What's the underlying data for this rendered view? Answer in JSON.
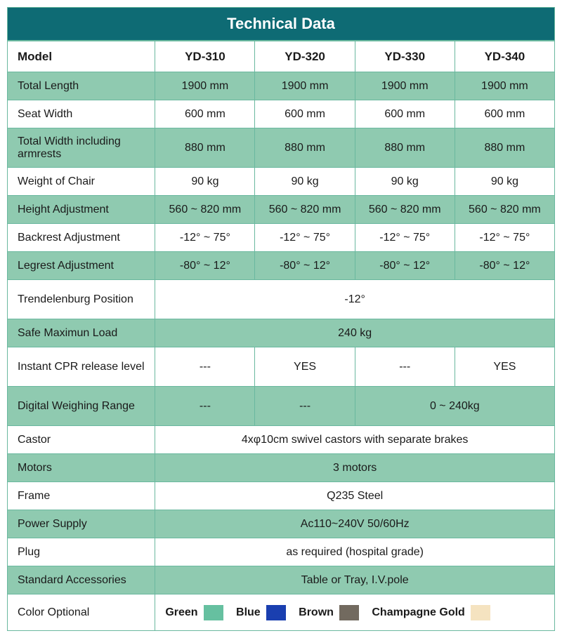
{
  "title": "Technical Data",
  "colors": {
    "header_bg": "#0e6b74",
    "row_green": "#8fcab0",
    "row_white": "#ffffff",
    "border": "#6ab89f",
    "text": "#1a1a1a",
    "title_text": "#ffffff"
  },
  "columns": [
    "Model",
    "YD-310",
    "YD-320",
    "YD-330",
    "YD-340"
  ],
  "col_widths": [
    "27%",
    "18.25%",
    "18.25%",
    "18.25%",
    "18.25%"
  ],
  "rows": [
    {
      "label": "Total Length",
      "cells": [
        "1900 mm",
        "1900 mm",
        "1900 mm",
        "1900 mm"
      ],
      "bg": "green"
    },
    {
      "label": "Seat Width",
      "cells": [
        "600  mm",
        "600  mm",
        "600  mm",
        "600  mm"
      ],
      "bg": "white"
    },
    {
      "label": "Total Width including armrests",
      "cells": [
        "880 mm",
        "880 mm",
        "880 mm",
        "880 mm"
      ],
      "bg": "green",
      "tall": true
    },
    {
      "label": "Weight of Chair",
      "cells": [
        "90 kg",
        "90 kg",
        "90 kg",
        "90 kg"
      ],
      "bg": "white"
    },
    {
      "label": "Height Adjustment",
      "cells": [
        "560 ~ 820 mm",
        "560  ~ 820 mm",
        "560 ~ 820 mm",
        "560 ~ 820 mm"
      ],
      "bg": "green"
    },
    {
      "label": "Backrest Adjustment",
      "cells": [
        "-12° ~ 75°",
        "-12° ~ 75°",
        "-12° ~ 75°",
        "-12° ~ 75°"
      ],
      "bg": "white"
    },
    {
      "label": "Legrest Adjustment",
      "cells": [
        "-80° ~ 12°",
        "-80° ~ 12°",
        "-80° ~ 12°",
        "-80° ~ 12°"
      ],
      "bg": "green"
    },
    {
      "label": "Trendelenburg Position",
      "span": "-12°",
      "bg": "white",
      "tall": true
    },
    {
      "label": "Safe Maximun Load",
      "span": "240 kg",
      "bg": "green"
    },
    {
      "label": "Instant CPR release level",
      "cells": [
        "---",
        "YES",
        "---",
        "YES"
      ],
      "bg": "white",
      "tall": true
    },
    {
      "label": "Digital Weighing Range",
      "cells_merge": [
        {
          "text": "---",
          "span": 1
        },
        {
          "text": "---",
          "span": 1
        },
        {
          "text": "0 ~ 240kg",
          "span": 2
        }
      ],
      "bg": "green",
      "tall": true
    },
    {
      "label": "Castor",
      "span": "4xφ10cm swivel castors with separate brakes",
      "bg": "white"
    },
    {
      "label": "Motors",
      "span": "3  motors",
      "bg": "green"
    },
    {
      "label": "Frame",
      "span": "Q235 Steel",
      "bg": "white"
    },
    {
      "label": "Power Supply",
      "span": "Ac110~240V  50/60Hz",
      "bg": "green"
    },
    {
      "label": "Plug",
      "span": "as required (hospital grade)",
      "bg": "white"
    },
    {
      "label": "  Standard Accessories",
      "span": "Table or Tray, I.V.pole",
      "bg": "green"
    }
  ],
  "color_row": {
    "label": "Color Optional",
    "options": [
      {
        "name": "Green",
        "hex": "#66c0a0"
      },
      {
        "name": "Blue",
        "hex": "#1a3fb0"
      },
      {
        "name": "Brown",
        "hex": "#726a5f"
      },
      {
        "name": "Champagne Gold",
        "hex": "#f5e3c0"
      }
    ]
  }
}
